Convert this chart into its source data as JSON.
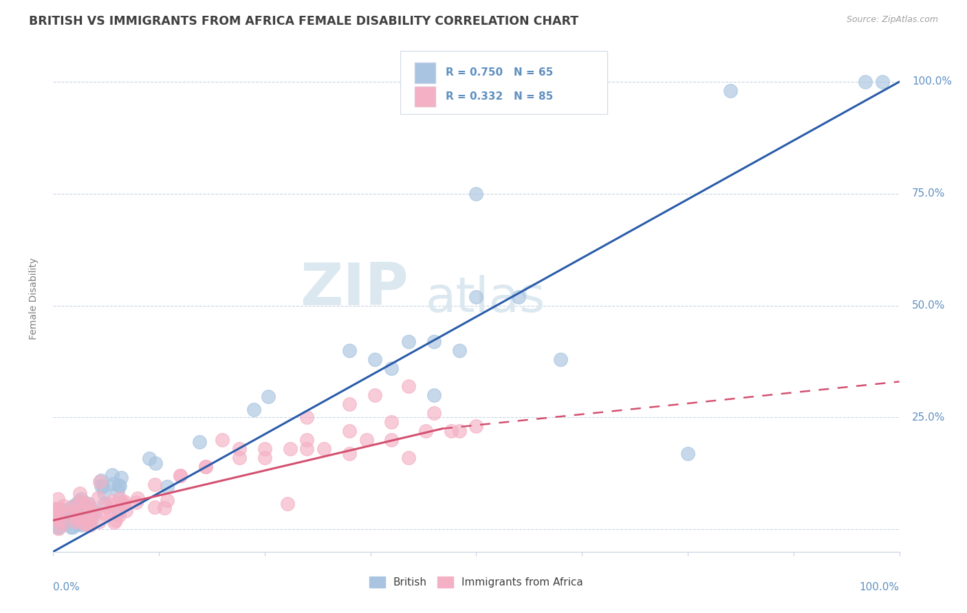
{
  "title": "BRITISH VS IMMIGRANTS FROM AFRICA FEMALE DISABILITY CORRELATION CHART",
  "source": "Source: ZipAtlas.com",
  "ylabel": "Female Disability",
  "legend_british_R": "R = 0.750",
  "legend_british_N": "N = 65",
  "legend_africa_R": "R = 0.332",
  "legend_africa_N": "N = 85",
  "british_color": "#a8c4e0",
  "africa_color": "#f4b0c4",
  "british_line_color": "#2a5caa",
  "africa_line_color": "#d45070",
  "background_color": "#ffffff",
  "watermark_zip": "ZIP",
  "watermark_atlas": "atlas",
  "grid_color": "#c8d4e4",
  "title_color": "#404040",
  "axis_label_color": "#6090c0",
  "watermark_color": "#dce8f0"
}
